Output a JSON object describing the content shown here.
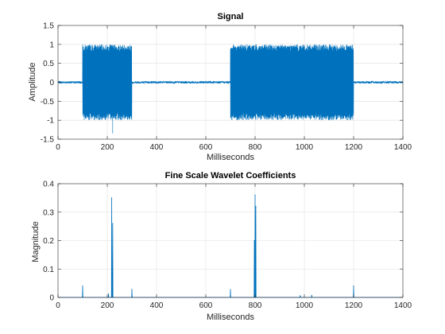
{
  "chart_data": [
    {
      "type": "line",
      "title": "Signal",
      "xlabel": "Milliseconds",
      "ylabel": "Amplitude",
      "xlim": [
        0,
        1400
      ],
      "ylim": [
        -1.5,
        1.5
      ],
      "xticks": [
        0,
        200,
        400,
        600,
        800,
        1000,
        1200,
        1400
      ],
      "yticks": [
        -1.5,
        -1,
        -0.5,
        0,
        0.5,
        1,
        1.5
      ],
      "xtick_labels": [
        "0",
        "200",
        "400",
        "600",
        "800",
        "1000",
        "1200",
        "1400"
      ],
      "ytick_labels": [
        "-1.5",
        "-1",
        "-0.5",
        "0",
        "0.5",
        "1",
        "1.5"
      ],
      "grid": true,
      "color": "#0072BD",
      "segments": [
        {
          "x_start": 0,
          "x_end": 100,
          "kind": "noise",
          "amplitude": 0.03
        },
        {
          "x_start": 100,
          "x_end": 300,
          "kind": "oscillation",
          "amplitude": 1.0,
          "min": -1.35
        },
        {
          "x_start": 300,
          "x_end": 700,
          "kind": "noise",
          "amplitude": 0.03
        },
        {
          "x_start": 700,
          "x_end": 1200,
          "kind": "oscillation",
          "amplitude": 1.0
        },
        {
          "x_start": 1200,
          "x_end": 1400,
          "kind": "noise",
          "amplitude": 0.03
        }
      ]
    },
    {
      "type": "line",
      "title": "Fine Scale Wavelet Coefficients",
      "xlabel": "Milliseconds",
      "ylabel": "Magnitude",
      "xlim": [
        0,
        1400
      ],
      "ylim": [
        0,
        0.4
      ],
      "xticks": [
        0,
        200,
        400,
        600,
        800,
        1000,
        1200,
        1400
      ],
      "yticks": [
        0,
        0.1,
        0.2,
        0.3,
        0.4
      ],
      "xtick_labels": [
        "0",
        "200",
        "400",
        "600",
        "800",
        "1000",
        "1200",
        "1400"
      ],
      "ytick_labels": [
        "0",
        "0.1",
        "0.2",
        "0.3",
        "0.4"
      ],
      "grid": true,
      "color": "#0072BD",
      "peaks": [
        {
          "x": 100,
          "y": 0.04
        },
        {
          "x": 205,
          "y": 0.012
        },
        {
          "x": 218,
          "y": 0.35
        },
        {
          "x": 222,
          "y": 0.26
        },
        {
          "x": 300,
          "y": 0.028
        },
        {
          "x": 700,
          "y": 0.027
        },
        {
          "x": 797,
          "y": 0.2
        },
        {
          "x": 800,
          "y": 0.36
        },
        {
          "x": 803,
          "y": 0.32
        },
        {
          "x": 983,
          "y": 0.006
        },
        {
          "x": 1030,
          "y": 0.007
        },
        {
          "x": 1200,
          "y": 0.04
        }
      ]
    }
  ]
}
